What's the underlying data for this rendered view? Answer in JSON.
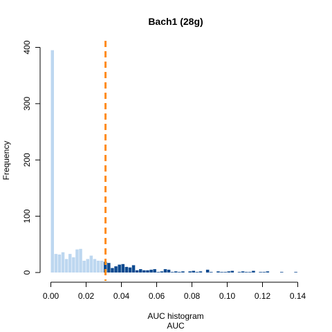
{
  "chart_data": {
    "type": "bar",
    "title": "Bach1 (28g)",
    "xlabel": "AUC histogram",
    "xlabel2": "AUC",
    "ylabel": "Frequency",
    "xlim": [
      -0.0015,
      0.1425
    ],
    "ylim": [
      0,
      410
    ],
    "x_ticks": [
      0.0,
      0.02,
      0.04,
      0.06,
      0.08,
      0.1,
      0.12,
      0.14
    ],
    "x_tick_labels": [
      "0.00",
      "0.02",
      "0.04",
      "0.06",
      "0.08",
      "0.10",
      "0.12",
      "0.14"
    ],
    "y_ticks": [
      0,
      100,
      200,
      300,
      400
    ],
    "y_tick_labels": [
      "0",
      "100",
      "200",
      "300",
      "400"
    ],
    "bin_width": 0.002,
    "bin_start": 0.0,
    "threshold": 0.031,
    "colors": {
      "below": "#bdd7f0",
      "above": "#0d4a90",
      "threshold_line": "#ff8c1a"
    },
    "counts": [
      395,
      33,
      32,
      36,
      24,
      33,
      27,
      41,
      42,
      21,
      24,
      30,
      24,
      21,
      21,
      19,
      17,
      8,
      11,
      14,
      15,
      10,
      9,
      13,
      4,
      6,
      4,
      4,
      5,
      6,
      1,
      2,
      6,
      5,
      1,
      2,
      1,
      2,
      0,
      2,
      3,
      1,
      2,
      0,
      5,
      1,
      0,
      2,
      1,
      1,
      2,
      3,
      0,
      1,
      2,
      1,
      1,
      3,
      0,
      1,
      1,
      2,
      0,
      0,
      0,
      1,
      0,
      0,
      0,
      1,
      0
    ]
  }
}
